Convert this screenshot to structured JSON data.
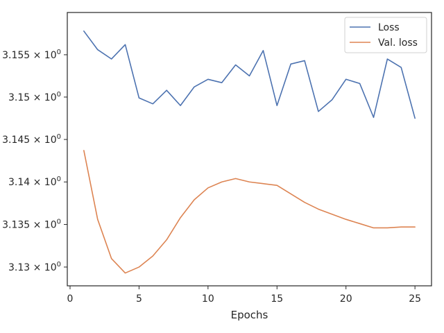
{
  "chart_data": {
    "type": "line",
    "title": "",
    "xlabel": "Epochs",
    "ylabel": "",
    "xlim": [
      -0.2,
      26.2
    ],
    "ylim": [
      3.1278,
      3.16
    ],
    "yscale": "log",
    "grid": false,
    "legend_position": "top-right",
    "x_ticks": [
      0,
      5,
      10,
      15,
      20,
      25
    ],
    "x_tick_labels": [
      "0",
      "5",
      "10",
      "15",
      "20",
      "25"
    ],
    "y_ticks": [
      3.13,
      3.135,
      3.14,
      3.145,
      3.15,
      3.155
    ],
    "y_tick_labels": [
      "3.13",
      "3.135",
      "3.14",
      "3.145",
      "3.15",
      "3.155"
    ],
    "y_tick_exponent": "× 10",
    "y_tick_exponent_value": "0",
    "x": [
      1,
      2,
      3,
      4,
      5,
      6,
      7,
      8,
      9,
      10,
      11,
      12,
      13,
      14,
      15,
      16,
      17,
      18,
      19,
      20,
      21,
      22,
      23,
      24,
      25
    ],
    "series": [
      {
        "name": "Loss",
        "color": "#4c72b0",
        "values": [
          3.1578,
          3.1556,
          3.1545,
          3.1562,
          3.1499,
          3.1492,
          3.1508,
          3.149,
          3.1512,
          3.1521,
          3.1517,
          3.1538,
          3.1525,
          3.1555,
          3.149,
          3.1539,
          3.1543,
          3.1483,
          3.1497,
          3.1521,
          3.1516,
          3.1476,
          3.1545,
          3.1535,
          3.1475
        ]
      },
      {
        "name": "Val. loss",
        "color": "#dd8452",
        "values": [
          3.1437,
          3.1356,
          3.131,
          3.1293,
          3.13,
          3.1313,
          3.1332,
          3.1358,
          3.1379,
          3.1393,
          3.14,
          3.1404,
          3.14,
          3.1398,
          3.1396,
          3.1386,
          3.1376,
          3.1368,
          3.1362,
          3.1356,
          3.1351,
          3.1346,
          3.1346,
          3.1347,
          3.1347
        ]
      }
    ]
  }
}
